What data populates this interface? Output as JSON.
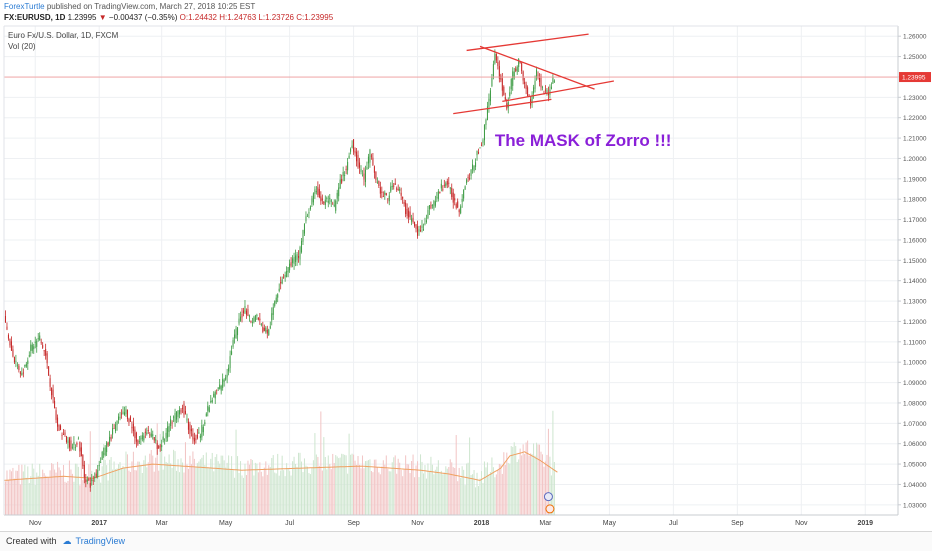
{
  "header": {
    "author": "ForexTurtle",
    "published": "published on TradingView.com, March 27, 2018 10:25 EST",
    "symbol": "FX:EURUSD, 1D",
    "last": "1.23995",
    "change": "−0.00437 (−0.35%)",
    "open": "O:1.24432",
    "high": "H:1.24763",
    "low": "L:1.23726",
    "close": "C:1.23995"
  },
  "legend": {
    "instrument": "Euro Fx/U.S. Dollar, 1D, FXCM",
    "volume": "Vol (20)"
  },
  "annotation": {
    "text": "The  MASK of Zorro !!!",
    "color": "#8a1fd8"
  },
  "footer": {
    "created_with": "Created with",
    "brand": "TradingView"
  },
  "colors": {
    "up": "#3f9c46",
    "down": "#c62828",
    "trendline": "#e53935",
    "price_line": "#ef9a9a",
    "price_badge": "#e53935",
    "volume_up": "#cfe6d0",
    "volume_down": "#f2c6c6",
    "volume_ma": "#f0a060",
    "grid": "#eef0f3"
  },
  "chart_data": {
    "type": "candlestick",
    "symbol": "EURUSD",
    "timeframe": "1D",
    "current_price": 1.23995,
    "current_price_label": "1.23995",
    "ylim": [
      1.025,
      1.265
    ],
    "y_ticks": [
      "1.03000",
      "1.04000",
      "1.05000",
      "1.06000",
      "1.07000",
      "1.08000",
      "1.09000",
      "1.10000",
      "1.11000",
      "1.12000",
      "1.13000",
      "1.14000",
      "1.15000",
      "1.16000",
      "1.17000",
      "1.18000",
      "1.19000",
      "1.20000",
      "1.21000",
      "1.22000",
      "1.23000",
      "1.24000",
      "1.25000",
      "1.26000"
    ],
    "x_ticks": [
      "Nov",
      "2017",
      "Mar",
      "May",
      "Jul",
      "Sep",
      "Nov",
      "2018",
      "Mar",
      "May",
      "Jul",
      "Sep",
      "Nov",
      "2019"
    ],
    "x_tick_bold": [
      "2017",
      "2018",
      "2019"
    ],
    "x_tick_index": [
      21,
      64,
      106,
      149,
      192,
      235,
      278,
      321,
      364,
      407,
      450,
      493,
      536,
      579
    ],
    "bar_range": [
      0,
      601
    ],
    "price_path": [
      [
        0,
        1.121
      ],
      [
        6,
        1.103
      ],
      [
        12,
        1.094
      ],
      [
        18,
        1.107
      ],
      [
        24,
        1.112
      ],
      [
        28,
        1.103
      ],
      [
        32,
        1.085
      ],
      [
        36,
        1.068
      ],
      [
        40,
        1.064
      ],
      [
        46,
        1.058
      ],
      [
        50,
        1.062
      ],
      [
        54,
        1.044
      ],
      [
        58,
        1.04
      ],
      [
        62,
        1.045
      ],
      [
        66,
        1.055
      ],
      [
        70,
        1.06
      ],
      [
        74,
        1.068
      ],
      [
        78,
        1.073
      ],
      [
        82,
        1.076
      ],
      [
        86,
        1.068
      ],
      [
        90,
        1.06
      ],
      [
        96,
        1.067
      ],
      [
        100,
        1.063
      ],
      [
        104,
        1.058
      ],
      [
        108,
        1.063
      ],
      [
        112,
        1.07
      ],
      [
        116,
        1.075
      ],
      [
        120,
        1.078
      ],
      [
        124,
        1.068
      ],
      [
        128,
        1.062
      ],
      [
        132,
        1.065
      ],
      [
        136,
        1.075
      ],
      [
        142,
        1.085
      ],
      [
        146,
        1.089
      ],
      [
        150,
        1.095
      ],
      [
        154,
        1.11
      ],
      [
        158,
        1.12
      ],
      [
        162,
        1.127
      ],
      [
        166,
        1.12
      ],
      [
        170,
        1.123
      ],
      [
        174,
        1.116
      ],
      [
        178,
        1.115
      ],
      [
        182,
        1.13
      ],
      [
        186,
        1.14
      ],
      [
        190,
        1.145
      ],
      [
        194,
        1.15
      ],
      [
        198,
        1.152
      ],
      [
        202,
        1.168
      ],
      [
        206,
        1.177
      ],
      [
        210,
        1.185
      ],
      [
        214,
        1.178
      ],
      [
        218,
        1.18
      ],
      [
        222,
        1.176
      ],
      [
        226,
        1.188
      ],
      [
        230,
        1.195
      ],
      [
        234,
        1.208
      ],
      [
        238,
        1.197
      ],
      [
        242,
        1.19
      ],
      [
        246,
        1.203
      ],
      [
        250,
        1.19
      ],
      [
        254,
        1.182
      ],
      [
        258,
        1.181
      ],
      [
        262,
        1.188
      ],
      [
        266,
        1.184
      ],
      [
        270,
        1.174
      ],
      [
        274,
        1.17
      ],
      [
        278,
        1.163
      ],
      [
        282,
        1.167
      ],
      [
        286,
        1.176
      ],
      [
        290,
        1.179
      ],
      [
        294,
        1.186
      ],
      [
        298,
        1.188
      ],
      [
        302,
        1.18
      ],
      [
        306,
        1.175
      ],
      [
        310,
        1.188
      ],
      [
        314,
        1.193
      ],
      [
        318,
        1.202
      ],
      [
        322,
        1.21
      ],
      [
        326,
        1.23
      ],
      [
        330,
        1.25
      ],
      [
        334,
        1.238
      ],
      [
        338,
        1.225
      ],
      [
        342,
        1.241
      ],
      [
        346,
        1.248
      ],
      [
        350,
        1.236
      ],
      [
        354,
        1.228
      ],
      [
        358,
        1.243
      ],
      [
        362,
        1.234
      ],
      [
        366,
        1.232
      ],
      [
        370,
        1.24
      ]
    ],
    "volume_ma_path": [
      [
        0,
        1.042
      ],
      [
        40,
        1.044
      ],
      [
        60,
        1.043
      ],
      [
        80,
        1.048
      ],
      [
        100,
        1.05
      ],
      [
        120,
        1.049
      ],
      [
        160,
        1.047
      ],
      [
        200,
        1.048
      ],
      [
        240,
        1.049
      ],
      [
        280,
        1.047
      ],
      [
        300,
        1.045
      ],
      [
        320,
        1.042
      ],
      [
        334,
        1.048
      ],
      [
        340,
        1.054
      ],
      [
        350,
        1.056
      ],
      [
        360,
        1.052
      ],
      [
        372,
        1.046
      ]
    ],
    "trendlines": [
      {
        "name": "upper-channel",
        "from": [
          311,
          1.253
        ],
        "to": [
          393,
          1.261
        ]
      },
      {
        "name": "lower-channel",
        "from": [
          302,
          1.222
        ],
        "to": [
          368,
          1.229
        ]
      },
      {
        "name": "triangle-upper",
        "from": [
          320,
          1.255
        ],
        "to": [
          397,
          1.234
        ]
      },
      {
        "name": "triangle-lower",
        "from": [
          335,
          1.228
        ],
        "to": [
          410,
          1.238
        ]
      }
    ]
  }
}
